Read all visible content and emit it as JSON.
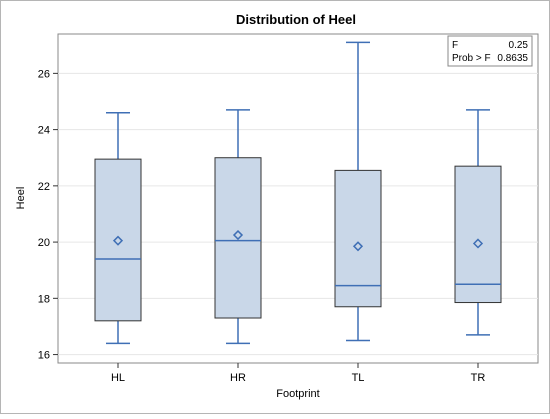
{
  "chart_data": {
    "type": "box",
    "title": "Distribution of Heel",
    "xlabel": "Footprint",
    "ylabel": "Heel",
    "ylim": [
      15.7,
      27.4
    ],
    "yticks": [
      16,
      18,
      20,
      22,
      24,
      26
    ],
    "grid": true,
    "categories": [
      "HL",
      "HR",
      "TL",
      "TR"
    ],
    "boxes": [
      {
        "category": "HL",
        "min": 16.4,
        "q1": 17.2,
        "median": 19.4,
        "q3": 22.95,
        "max": 24.6,
        "mean": 20.05
      },
      {
        "category": "HR",
        "min": 16.4,
        "q1": 17.3,
        "median": 20.05,
        "q3": 23.0,
        "max": 24.7,
        "mean": 20.25
      },
      {
        "category": "TL",
        "min": 16.5,
        "q1": 17.7,
        "median": 18.45,
        "q3": 22.55,
        "max": 27.1,
        "mean": 19.85
      },
      {
        "category": "TR",
        "min": 16.7,
        "q1": 17.85,
        "median": 18.5,
        "q3": 22.7,
        "max": 24.7,
        "mean": 19.95
      }
    ],
    "stats": [
      {
        "label": "F",
        "value": "0.25"
      },
      {
        "label": "Prob > F",
        "value": "0.8635"
      }
    ],
    "colors": {
      "box_fill": "#c9d7e8",
      "box_stroke": "#333333",
      "whisker": "#3f6fb5",
      "median": "#3f6fb5",
      "mean_marker": "#3f6fb5",
      "grid": "#e6e6e6",
      "frame": "#888888"
    }
  }
}
